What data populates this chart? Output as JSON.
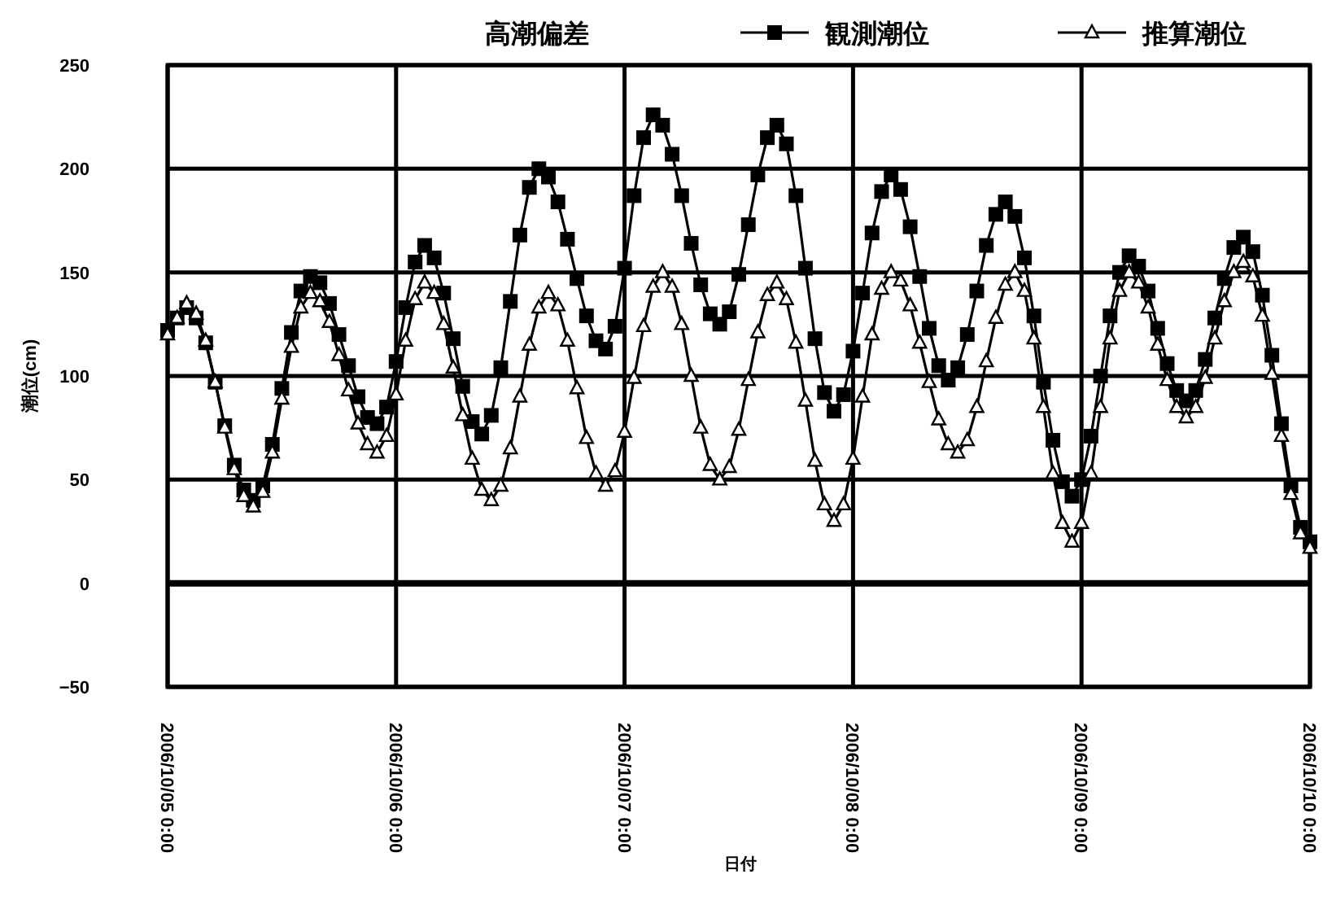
{
  "chart_data": {
    "type": "line",
    "title": "高潮偏差",
    "xlabel": "日付",
    "ylabel": "潮位(cm)",
    "x": [
      "2006-10-05T00:00",
      "2006-10-05T01:00",
      "2006-10-05T02:00",
      "2006-10-05T03:00",
      "2006-10-05T04:00",
      "2006-10-05T05:00",
      "2006-10-05T06:00",
      "2006-10-05T07:00",
      "2006-10-05T08:00",
      "2006-10-05T09:00",
      "2006-10-05T10:00",
      "2006-10-05T11:00",
      "2006-10-05T12:00",
      "2006-10-05T13:00",
      "2006-10-05T14:00",
      "2006-10-05T15:00",
      "2006-10-05T16:00",
      "2006-10-05T17:00",
      "2006-10-05T18:00",
      "2006-10-05T19:00",
      "2006-10-05T20:00",
      "2006-10-05T21:00",
      "2006-10-05T22:00",
      "2006-10-05T23:00",
      "2006-10-06T00:00",
      "2006-10-06T01:00",
      "2006-10-06T02:00",
      "2006-10-06T03:00",
      "2006-10-06T04:00",
      "2006-10-06T05:00",
      "2006-10-06T06:00",
      "2006-10-06T07:00",
      "2006-10-06T08:00",
      "2006-10-06T09:00",
      "2006-10-06T10:00",
      "2006-10-06T11:00",
      "2006-10-06T12:00",
      "2006-10-06T13:00",
      "2006-10-06T14:00",
      "2006-10-06T15:00",
      "2006-10-06T16:00",
      "2006-10-06T17:00",
      "2006-10-06T18:00",
      "2006-10-06T19:00",
      "2006-10-06T20:00",
      "2006-10-06T21:00",
      "2006-10-06T22:00",
      "2006-10-06T23:00",
      "2006-10-07T00:00",
      "2006-10-07T01:00",
      "2006-10-07T02:00",
      "2006-10-07T03:00",
      "2006-10-07T04:00",
      "2006-10-07T05:00",
      "2006-10-07T06:00",
      "2006-10-07T07:00",
      "2006-10-07T08:00",
      "2006-10-07T09:00",
      "2006-10-07T10:00",
      "2006-10-07T11:00",
      "2006-10-07T12:00",
      "2006-10-07T13:00",
      "2006-10-07T14:00",
      "2006-10-07T15:00",
      "2006-10-07T16:00",
      "2006-10-07T17:00",
      "2006-10-07T18:00",
      "2006-10-07T19:00",
      "2006-10-07T20:00",
      "2006-10-07T21:00",
      "2006-10-07T22:00",
      "2006-10-07T23:00",
      "2006-10-08T00:00",
      "2006-10-08T01:00",
      "2006-10-08T02:00",
      "2006-10-08T03:00",
      "2006-10-08T04:00",
      "2006-10-08T05:00",
      "2006-10-08T06:00",
      "2006-10-08T07:00",
      "2006-10-08T08:00",
      "2006-10-08T09:00",
      "2006-10-08T10:00",
      "2006-10-08T11:00",
      "2006-10-08T12:00",
      "2006-10-08T13:00",
      "2006-10-08T14:00",
      "2006-10-08T15:00",
      "2006-10-08T16:00",
      "2006-10-08T17:00",
      "2006-10-08T18:00",
      "2006-10-08T19:00",
      "2006-10-08T20:00",
      "2006-10-08T21:00",
      "2006-10-08T22:00",
      "2006-10-08T23:00",
      "2006-10-09T00:00",
      "2006-10-09T01:00",
      "2006-10-09T02:00",
      "2006-10-09T03:00",
      "2006-10-09T04:00",
      "2006-10-09T05:00",
      "2006-10-09T06:00",
      "2006-10-09T07:00",
      "2006-10-09T08:00",
      "2006-10-09T09:00",
      "2006-10-09T10:00",
      "2006-10-09T11:00",
      "2006-10-09T12:00",
      "2006-10-09T13:00",
      "2006-10-09T14:00",
      "2006-10-09T15:00",
      "2006-10-09T16:00",
      "2006-10-09T17:00",
      "2006-10-09T18:00",
      "2006-10-09T19:00",
      "2006-10-09T20:00",
      "2006-10-09T21:00",
      "2006-10-09T22:00",
      "2006-10-09T23:00",
      "2006-10-10T00:00"
    ],
    "series": [
      {
        "name": "観測潮位",
        "color": "#000000",
        "marker": "square",
        "values": [
          122,
          128,
          133,
          128,
          116,
          97,
          76,
          57,
          45,
          40,
          47,
          67,
          94,
          121,
          141,
          148,
          145,
          135,
          120,
          105,
          90,
          80,
          77,
          85,
          107,
          133,
          155,
          163,
          157,
          140,
          118,
          95,
          78,
          72,
          81,
          104,
          136,
          168,
          191,
          200,
          196,
          184,
          166,
          147,
          129,
          117,
          113,
          124,
          152,
          187,
          215,
          226,
          221,
          207,
          187,
          164,
          144,
          130,
          125,
          131,
          149,
          173,
          197,
          215,
          221,
          212,
          187,
          152,
          118,
          92,
          83,
          91,
          112,
          140,
          169,
          189,
          197,
          190,
          172,
          148,
          123,
          105,
          98,
          104,
          120,
          141,
          163,
          178,
          184,
          177,
          157,
          129,
          97,
          69,
          49,
          42,
          50,
          71,
          100,
          129,
          150,
          158,
          153,
          141,
          123,
          106,
          93,
          88,
          93,
          108,
          128,
          147,
          162,
          167,
          160,
          139,
          110,
          77,
          47,
          27,
          20
        ]
      },
      {
        "name": "推算潮位",
        "color": "#000000",
        "marker": "triangle",
        "values": [
          120,
          128,
          135,
          130,
          117,
          97,
          75,
          55,
          42,
          37,
          44,
          63,
          89,
          114,
          133,
          140,
          136,
          126,
          110,
          93,
          77,
          67,
          63,
          71,
          91,
          117,
          137,
          145,
          140,
          125,
          104,
          81,
          60,
          45,
          40,
          47,
          65,
          90,
          115,
          133,
          140,
          134,
          117,
          94,
          70,
          53,
          47,
          54,
          73,
          99,
          124,
          143,
          150,
          143,
          125,
          100,
          75,
          57,
          50,
          56,
          74,
          98,
          121,
          139,
          145,
          137,
          116,
          88,
          59,
          38,
          30,
          38,
          60,
          90,
          120,
          142,
          150,
          146,
          134,
          116,
          97,
          79,
          67,
          63,
          69,
          85,
          107,
          128,
          144,
          150,
          141,
          118,
          85,
          53,
          29,
          20,
          29,
          53,
          85,
          118,
          141,
          150,
          145,
          133,
          115,
          98,
          85,
          80,
          85,
          99,
          118,
          136,
          150,
          155,
          148,
          129,
          101,
          71,
          43,
          24,
          17
        ]
      }
    ],
    "xlim": [
      "2006-10-05T00:00",
      "2006-10-10T00:00"
    ],
    "xticks": [
      {
        "value": "2006-10-05T00:00",
        "label": "2006/10/05 0:00"
      },
      {
        "value": "2006-10-06T00:00",
        "label": "2006/10/06 0:00"
      },
      {
        "value": "2006-10-07T00:00",
        "label": "2006/10/07 0:00"
      },
      {
        "value": "2006-10-08T00:00",
        "label": "2006/10/08 0:00"
      },
      {
        "value": "2006-10-09T00:00",
        "label": "2006/10/09 0:00"
      },
      {
        "value": "2006-10-10T00:00",
        "label": "2006/10/10 0:00"
      }
    ],
    "ylim": [
      -50,
      250
    ],
    "yticks": [
      -50,
      0,
      50,
      100,
      150,
      200,
      250
    ],
    "ref_lines": [
      {
        "axis": "y",
        "value": 0,
        "color": "#000000"
      }
    ],
    "grid": true,
    "legend": "top",
    "line_style": "solid"
  }
}
